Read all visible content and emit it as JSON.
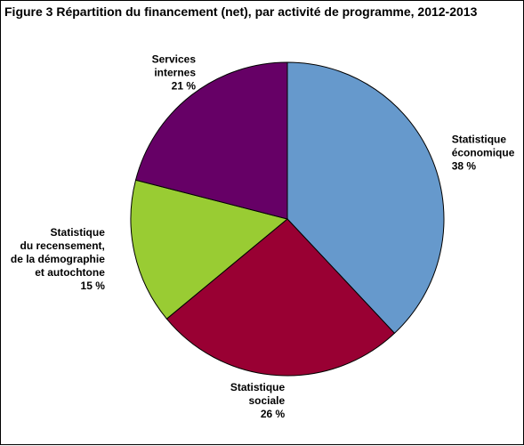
{
  "chart_data": {
    "type": "pie",
    "title": "Figure 3  Répartition du financement (net), par activité de programme, 2012-2013",
    "start_angle_deg": 0,
    "direction": "clockwise",
    "slices": [
      {
        "label_lines": [
          "Statistique",
          "économique"
        ],
        "value": 38,
        "value_label": "38 %",
        "color": "#6699cc",
        "label_anchor": "start"
      },
      {
        "label_lines": [
          "Statistique",
          "sociale"
        ],
        "value": 26,
        "value_label": "26 %",
        "color": "#990033",
        "label_anchor": "end"
      },
      {
        "label_lines": [
          "Statistique",
          "du recensement,",
          "de la démographie",
          "et autochtone"
        ],
        "value": 15,
        "value_label": "15 %",
        "color": "#99cc33",
        "label_anchor": "end"
      },
      {
        "label_lines": [
          "Services",
          "internes"
        ],
        "value": 21,
        "value_label": "21 %",
        "color": "#660066",
        "label_anchor": "end"
      }
    ]
  }
}
